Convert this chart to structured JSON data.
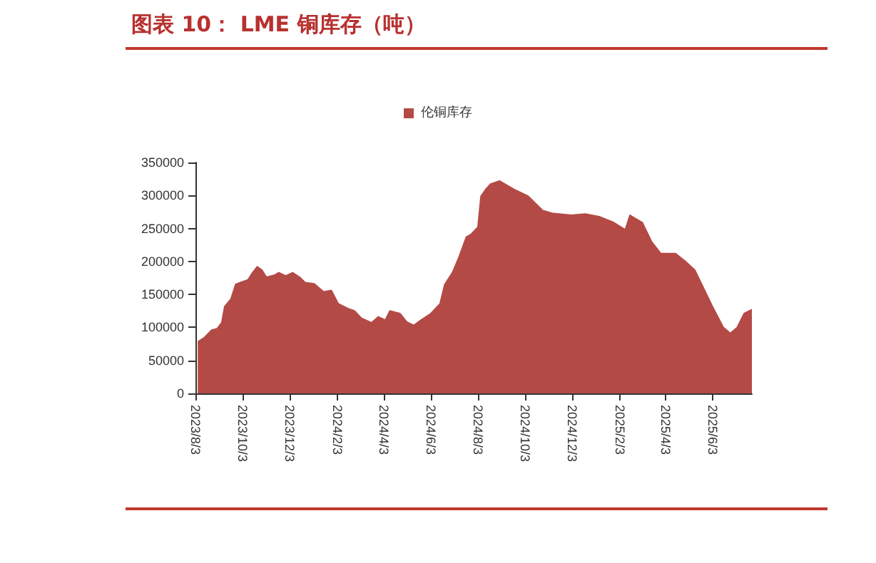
{
  "chart_data": {
    "type": "area",
    "title": "图表 10： LME 铜库存（吨）",
    "x": [
      "2023-08-06",
      "2023-08-15",
      "2023-08-24",
      "2023-08-31",
      "2023-09-06",
      "2023-09-10",
      "2023-09-18",
      "2023-09-24",
      "2023-09-30",
      "2023-10-10",
      "2023-10-16",
      "2023-10-22",
      "2023-10-28",
      "2023-11-03",
      "2023-11-13",
      "2023-11-19",
      "2023-11-28",
      "2023-12-07",
      "2023-12-16",
      "2023-12-23",
      "2024-01-04",
      "2024-01-16",
      "2024-01-26",
      "2024-02-04",
      "2024-02-16",
      "2024-02-25",
      "2024-03-05",
      "2024-03-18",
      "2024-03-27",
      "2024-04-05",
      "2024-04-11",
      "2024-04-24",
      "2024-05-03",
      "2024-05-12",
      "2024-05-21",
      "2024-06-03",
      "2024-06-15",
      "2024-06-21",
      "2024-07-01",
      "2024-07-10",
      "2024-07-19",
      "2024-07-25",
      "2024-08-03",
      "2024-08-07",
      "2024-08-13",
      "2024-08-19",
      "2024-08-31",
      "2024-09-19",
      "2024-10-07",
      "2024-10-26",
      "2024-11-07",
      "2024-12-02",
      "2024-12-20",
      "2025-01-07",
      "2025-01-26",
      "2025-02-10",
      "2025-02-16",
      "2025-03-04",
      "2025-03-16",
      "2025-03-28",
      "2025-04-16",
      "2025-04-28",
      "2025-05-11",
      "2025-05-23",
      "2025-06-04",
      "2025-06-17",
      "2025-06-26",
      "2025-07-05",
      "2025-07-14",
      "2025-07-24"
    ],
    "series": [
      {
        "name": "伦铜库存",
        "color": "#b44a46",
        "values": [
          78000,
          85000,
          96000,
          98000,
          107000,
          132000,
          143000,
          165000,
          168000,
          172000,
          183000,
          192000,
          187000,
          176000,
          179000,
          183000,
          178000,
          183000,
          176000,
          168000,
          166000,
          154000,
          156000,
          136000,
          129000,
          125000,
          114000,
          107000,
          116000,
          111000,
          125000,
          121000,
          108000,
          103000,
          111000,
          121000,
          136000,
          165000,
          183000,
          208000,
          237000,
          241000,
          252000,
          299000,
          309000,
          317000,
          322000,
          309000,
          299000,
          277000,
          273000,
          270000,
          272000,
          268000,
          259000,
          248000,
          270000,
          259000,
          230000,
          212000,
          212000,
          201000,
          187000,
          158000,
          129000,
          100000,
          91000,
          100000,
          121000,
          127000
        ]
      }
    ],
    "xlim": [
      "2023-08-03",
      "2025-07-24"
    ],
    "xticks": [
      {
        "value": "2023-08-03",
        "label": "2023/8/3"
      },
      {
        "value": "2023-10-03",
        "label": "2023/10/3"
      },
      {
        "value": "2023-12-03",
        "label": "2023/12/3"
      },
      {
        "value": "2024-02-03",
        "label": "2024/2/3"
      },
      {
        "value": "2024-04-03",
        "label": "2024/4/3"
      },
      {
        "value": "2024-06-03",
        "label": "2024/6/3"
      },
      {
        "value": "2024-08-03",
        "label": "2024/8/3"
      },
      {
        "value": "2024-10-03",
        "label": "2024/10/3"
      },
      {
        "value": "2024-12-03",
        "label": "2024/12/3"
      },
      {
        "value": "2025-02-03",
        "label": "2025/2/3"
      },
      {
        "value": "2025-04-03",
        "label": "2025/4/3"
      },
      {
        "value": "2025-06-03",
        "label": "2025/6/3"
      }
    ],
    "ylim": [
      0,
      350000
    ],
    "yticks": [
      0,
      50000,
      100000,
      150000,
      200000,
      250000,
      300000,
      350000
    ],
    "grid": false,
    "legend": "top"
  }
}
